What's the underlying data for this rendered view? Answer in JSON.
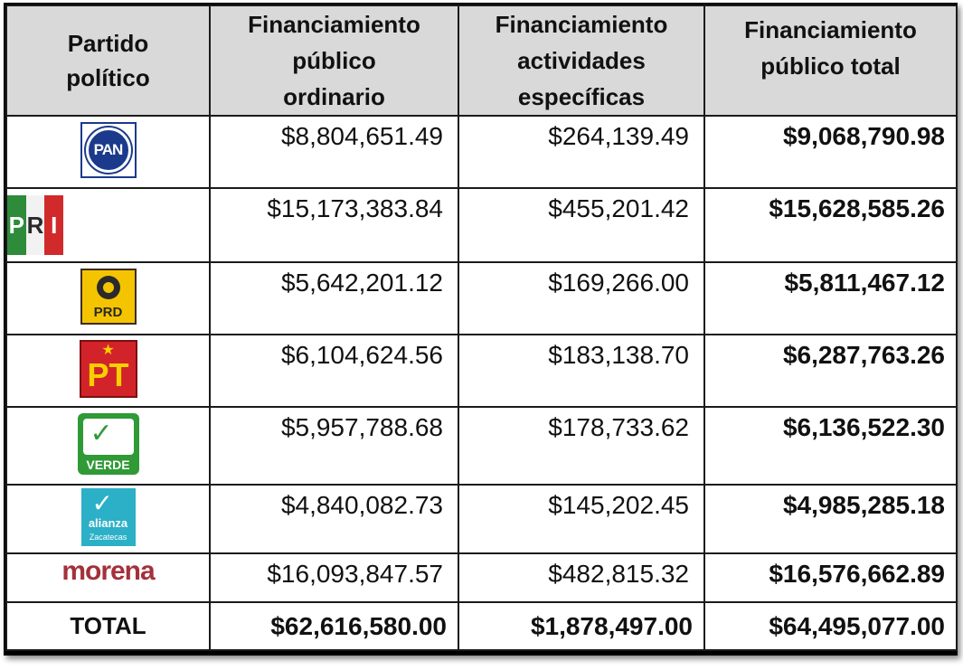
{
  "table": {
    "headers": {
      "party_line1": "Partido",
      "party_line2": "político",
      "ordinary_line1": "Financiamiento",
      "ordinary_line2": "público",
      "ordinary_line3": "ordinario",
      "specific_line1": "Financiamiento",
      "specific_line2": "actividades",
      "specific_line3": "específicas",
      "total_line1": "Financiamiento",
      "total_line2": "público total"
    },
    "rows": [
      {
        "party": "PAN",
        "logo_text": "PAN",
        "ordinary": "$8,804,651.49",
        "specific": "$264,139.49",
        "total": "$9,068,790.98"
      },
      {
        "party": "PRI",
        "logo_text": "PRI",
        "ordinary": "$15,173,383.84",
        "specific": "$455,201.42",
        "total": "$15,628,585.26"
      },
      {
        "party": "PRD",
        "logo_text": "PRD",
        "ordinary": "$5,642,201.12",
        "specific": "$169,266.00",
        "total": "$5,811,467.12"
      },
      {
        "party": "PT",
        "logo_text": "PT",
        "ordinary": "$6,104,624.56",
        "specific": "$183,138.70",
        "total": "$6,287,763.26"
      },
      {
        "party": "VERDE",
        "logo_text": "VERDE",
        "ordinary": "$5,957,788.68",
        "specific": "$178,733.62",
        "total": "$6,136,522.30"
      },
      {
        "party": "alianza Zacatecas",
        "logo_text": "alianza",
        "logo_subtext": "Zacatecas",
        "ordinary": "$4,840,082.73",
        "specific": "$145,202.45",
        "total": "$4,985,285.18"
      },
      {
        "party": "morena",
        "logo_text": "morena",
        "ordinary": "$16,093,847.57",
        "specific": "$482,815.32",
        "total": "$16,576,662.89"
      }
    ],
    "total_row": {
      "label": "TOTAL",
      "ordinary": "$62,616,580.00",
      "specific": "$1,878,497.00",
      "total": "$64,495,077.00"
    }
  },
  "colors": {
    "header_bg": "#d9d9d9",
    "border": "#1a1a1a",
    "pan_blue": "#1b3a8c",
    "pri_green": "#2e8b3a",
    "pri_red": "#d02a2a",
    "prd_yellow": "#f5c400",
    "pt_red": "#d2232a",
    "verde_green": "#2f9a36",
    "alianza_cyan": "#2bb0c7",
    "morena_maroon": "#a3313b"
  }
}
